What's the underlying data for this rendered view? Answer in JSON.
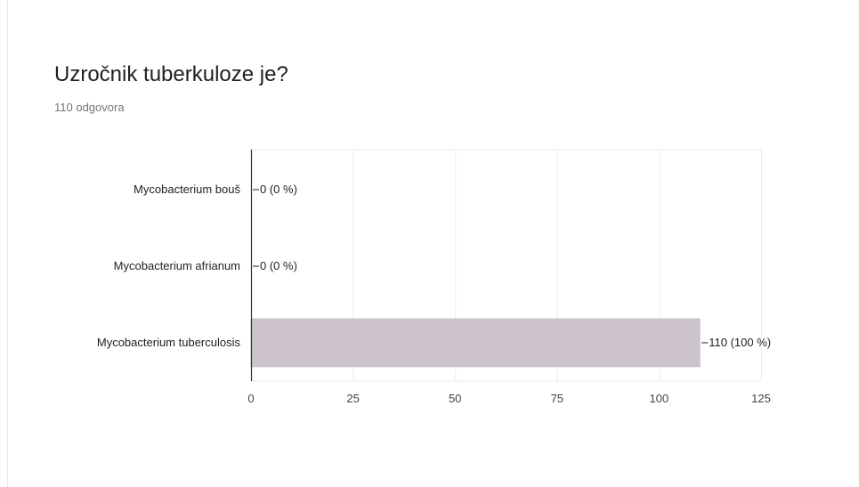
{
  "question": {
    "title": "Uzročnik tuberkuloze je?",
    "response_count": "110 odgovora"
  },
  "colors": {
    "bar": "#cdc4cb",
    "bar_stroke": "#bdb2bb",
    "axis": "#333333",
    "grid": "#ebebeb",
    "label": "#222222",
    "tick": "#444444"
  },
  "chart_data": {
    "type": "bar",
    "orientation": "horizontal",
    "categories": [
      "Mycobacterium bouš",
      "Mycobacterium afrianum",
      "Mycobacterium tuberculosis"
    ],
    "values": [
      0,
      0,
      110
    ],
    "data_labels": [
      "0 (0 %)",
      "0 (0 %)",
      "110 (100 %)"
    ],
    "xlim": [
      0,
      125
    ],
    "xticks": [
      0,
      25,
      50,
      75,
      100,
      125
    ],
    "grid": true,
    "legend": "none"
  }
}
